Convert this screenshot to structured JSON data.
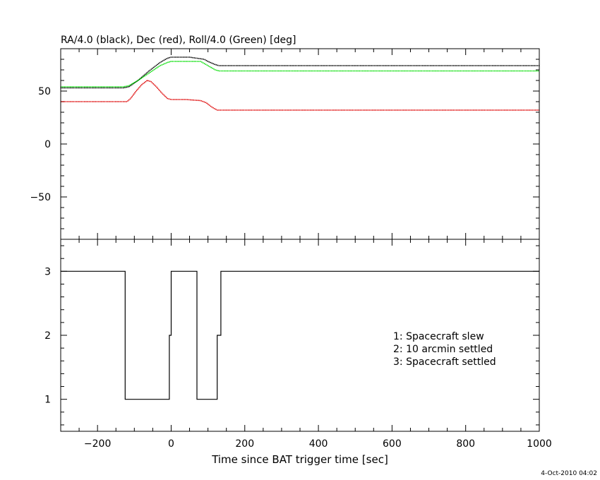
{
  "chart_data": [
    {
      "type": "line",
      "title": "RA/4.0 (black), Dec (red), Roll/4.0 (Green) [deg]",
      "xlim": [
        -300,
        1000
      ],
      "ylim": [
        -90,
        90
      ],
      "x_ticks": [
        -200,
        0,
        200,
        400,
        600,
        800,
        1000
      ],
      "y_ticks": [
        -50,
        0,
        50
      ],
      "y_tick_labels": [
        "−50",
        "0",
        "50"
      ],
      "series": [
        {
          "color": "#000000",
          "x": [
            -300,
            -130,
            -115,
            -90,
            -60,
            -30,
            -10,
            0,
            50,
            90,
            100,
            120,
            130,
            1000
          ],
          "y": [
            53,
            53,
            54,
            60,
            69,
            77,
            81,
            82,
            82,
            80,
            78,
            75,
            74,
            74
          ]
        },
        {
          "color": "#00dd00",
          "x": [
            -300,
            -130,
            -115,
            -90,
            -60,
            -30,
            -10,
            0,
            80,
            90,
            100,
            120,
            130,
            1000
          ],
          "y": [
            54,
            54,
            55,
            60,
            67,
            74,
            77,
            78,
            78,
            76,
            74,
            70,
            69,
            69
          ]
        },
        {
          "color": "#dd0000",
          "x": [
            -300,
            -120,
            -110,
            -95,
            -80,
            -65,
            -55,
            -40,
            -25,
            -10,
            0,
            40,
            80,
            95,
            110,
            125,
            1000
          ],
          "y": [
            40,
            40,
            43,
            50,
            56,
            60,
            59,
            54,
            48,
            43,
            42,
            42,
            41,
            39,
            35,
            32,
            32
          ]
        }
      ]
    },
    {
      "type": "line",
      "xlabel": "Time since BAT trigger time [sec]",
      "xlim": [
        -300,
        1000
      ],
      "ylim": [
        0.5,
        3.5
      ],
      "x_ticks": [
        -200,
        0,
        200,
        400,
        600,
        800,
        1000
      ],
      "x_tick_labels": [
        "−200",
        "0",
        "200",
        "400",
        "600",
        "800",
        "1000"
      ],
      "y_ticks": [
        1,
        2,
        3
      ],
      "y_tick_labels": [
        "1",
        "2",
        "3"
      ],
      "series": [
        {
          "color": "#000000",
          "x": [
            -300,
            -125,
            -125,
            -5,
            -5,
            0,
            0,
            70,
            70,
            125,
            125,
            135,
            135,
            1000
          ],
          "y": [
            3,
            3,
            1,
            1,
            2,
            2,
            3,
            3,
            1,
            1,
            2,
            2,
            3,
            3
          ]
        }
      ],
      "legend": [
        "1: Spacecraft slew",
        "2: 10 arcmin settled",
        "3: Spacecraft settled"
      ],
      "legend_position": "right"
    }
  ],
  "timestamp": "4-Oct-2010 04:02"
}
